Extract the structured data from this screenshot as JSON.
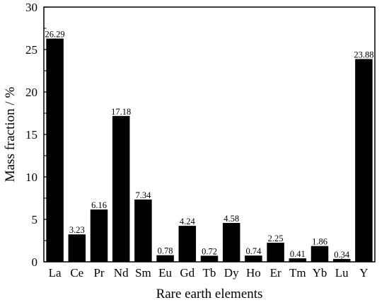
{
  "chart_data": {
    "type": "bar",
    "title": "",
    "xlabel": "Rare earth elements",
    "ylabel": "Mass fraction / %",
    "ylim": [
      0,
      30
    ],
    "yticks": [
      0,
      5,
      10,
      15,
      20,
      25,
      30
    ],
    "grid": false,
    "legend": "none",
    "bar_color": "#000000",
    "categories": [
      "La",
      "Ce",
      "Pr",
      "Nd",
      "Sm",
      "Eu",
      "Gd",
      "Tb",
      "Dy",
      "Ho",
      "Er",
      "Tm",
      "Yb",
      "Lu",
      "Y"
    ],
    "values": [
      26.29,
      3.23,
      6.16,
      17.18,
      7.34,
      0.78,
      4.24,
      0.72,
      4.58,
      0.74,
      2.25,
      0.41,
      1.86,
      0.34,
      23.88
    ],
    "data_labels": [
      "26.29",
      "3.23",
      "6.16",
      "17.18",
      "7.34",
      "0.78",
      "4.24",
      "0.72",
      "4.58",
      "0.74",
      "2.25",
      "0.41",
      "1.86",
      "0.34",
      "23.88"
    ]
  }
}
